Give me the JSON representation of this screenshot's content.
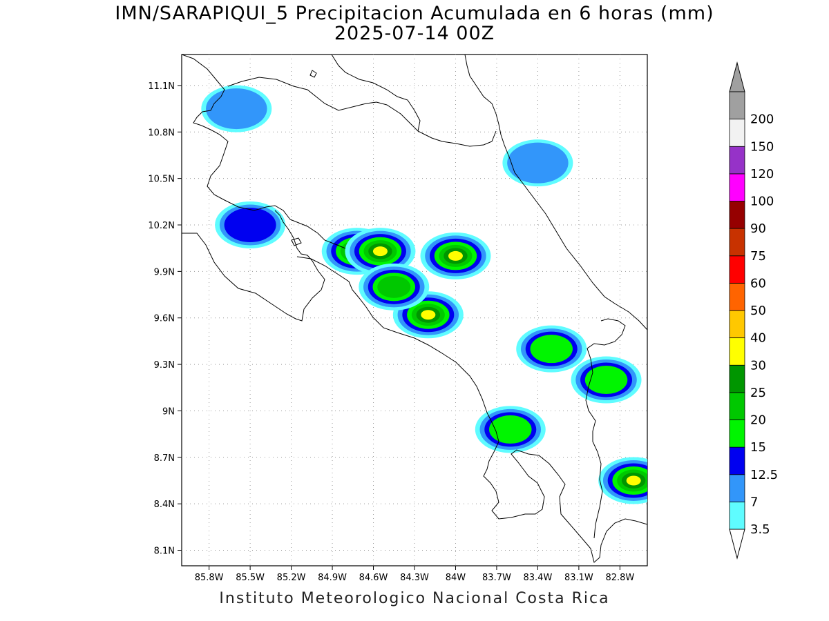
{
  "title": {
    "line1": "IMN/SARAPIQUI_5 Precipitacion Acumulada en 6 horas (mm)",
    "line2": "2025-07-14 00Z"
  },
  "footer": "Instituto Meteorologico Nacional Costa Rica",
  "map": {
    "lon_range": [
      -86.0,
      -82.6
    ],
    "lat_range": [
      8.0,
      11.3
    ],
    "lon_ticks": [
      {
        "value": -85.8,
        "label": "85.8W"
      },
      {
        "value": -85.5,
        "label": "85.5W"
      },
      {
        "value": -85.2,
        "label": "85.2W"
      },
      {
        "value": -84.9,
        "label": "84.9W"
      },
      {
        "value": -84.6,
        "label": "84.6W"
      },
      {
        "value": -84.3,
        "label": "84.3W"
      },
      {
        "value": -84.0,
        "label": "84W"
      },
      {
        "value": -83.7,
        "label": "83.7W"
      },
      {
        "value": -83.4,
        "label": "83.4W"
      },
      {
        "value": -83.1,
        "label": "83.1W"
      },
      {
        "value": -82.8,
        "label": "82.8W"
      }
    ],
    "lat_ticks": [
      {
        "value": 8.1,
        "label": "8.1N"
      },
      {
        "value": 8.4,
        "label": "8.4N"
      },
      {
        "value": 8.7,
        "label": "8.7N"
      },
      {
        "value": 9.0,
        "label": "9N"
      },
      {
        "value": 9.3,
        "label": "9.3N"
      },
      {
        "value": 9.6,
        "label": "9.6N"
      },
      {
        "value": 9.9,
        "label": "9.9N"
      },
      {
        "value": 10.2,
        "label": "10.2N"
      },
      {
        "value": 10.5,
        "label": "10.5N"
      },
      {
        "value": 10.8,
        "label": "10.8N"
      },
      {
        "value": 11.1,
        "label": "11.1N"
      }
    ],
    "grid": true,
    "precip_cells": [
      {
        "lon": -84.72,
        "lat": 10.03,
        "mm": 25
      },
      {
        "lon": -84.55,
        "lat": 10.03,
        "mm": 30
      },
      {
        "lon": -84.2,
        "lat": 9.62,
        "mm": 40
      },
      {
        "lon": -84.0,
        "lat": 10.0,
        "mm": 30
      },
      {
        "lon": -82.7,
        "lat": 8.55,
        "mm": 30
      },
      {
        "lon": -83.6,
        "lat": 8.88,
        "mm": 15
      },
      {
        "lon": -83.3,
        "lat": 9.4,
        "mm": 15
      },
      {
        "lon": -82.9,
        "lat": 9.2,
        "mm": 15
      },
      {
        "lon": -85.5,
        "lat": 10.2,
        "mm": 12.5
      },
      {
        "lon": -84.45,
        "lat": 9.8,
        "mm": 20
      },
      {
        "lon": -85.6,
        "lat": 10.95,
        "mm": 7
      },
      {
        "lon": -83.4,
        "lat": 10.6,
        "mm": 7
      }
    ]
  },
  "legend": {
    "levels": [
      {
        "label": "3.5",
        "color": "#5ffcff"
      },
      {
        "label": "7",
        "color": "#3296fa"
      },
      {
        "label": "12.5",
        "color": "#0000f0"
      },
      {
        "label": "15",
        "color": "#00f500"
      },
      {
        "label": "20",
        "color": "#00c800"
      },
      {
        "label": "25",
        "color": "#009600"
      },
      {
        "label": "30",
        "color": "#ffff00"
      },
      {
        "label": "40",
        "color": "#ffc800"
      },
      {
        "label": "50",
        "color": "#ff6400"
      },
      {
        "label": "60",
        "color": "#ff0000"
      },
      {
        "label": "75",
        "color": "#c83200"
      },
      {
        "label": "90",
        "color": "#960000"
      },
      {
        "label": "100",
        "color": "#ff00ff"
      },
      {
        "label": "120",
        "color": "#9632c8"
      },
      {
        "label": "150",
        "color": "#f2f2f2"
      },
      {
        "label": "200",
        "color": "#a0a0a0"
      }
    ]
  }
}
